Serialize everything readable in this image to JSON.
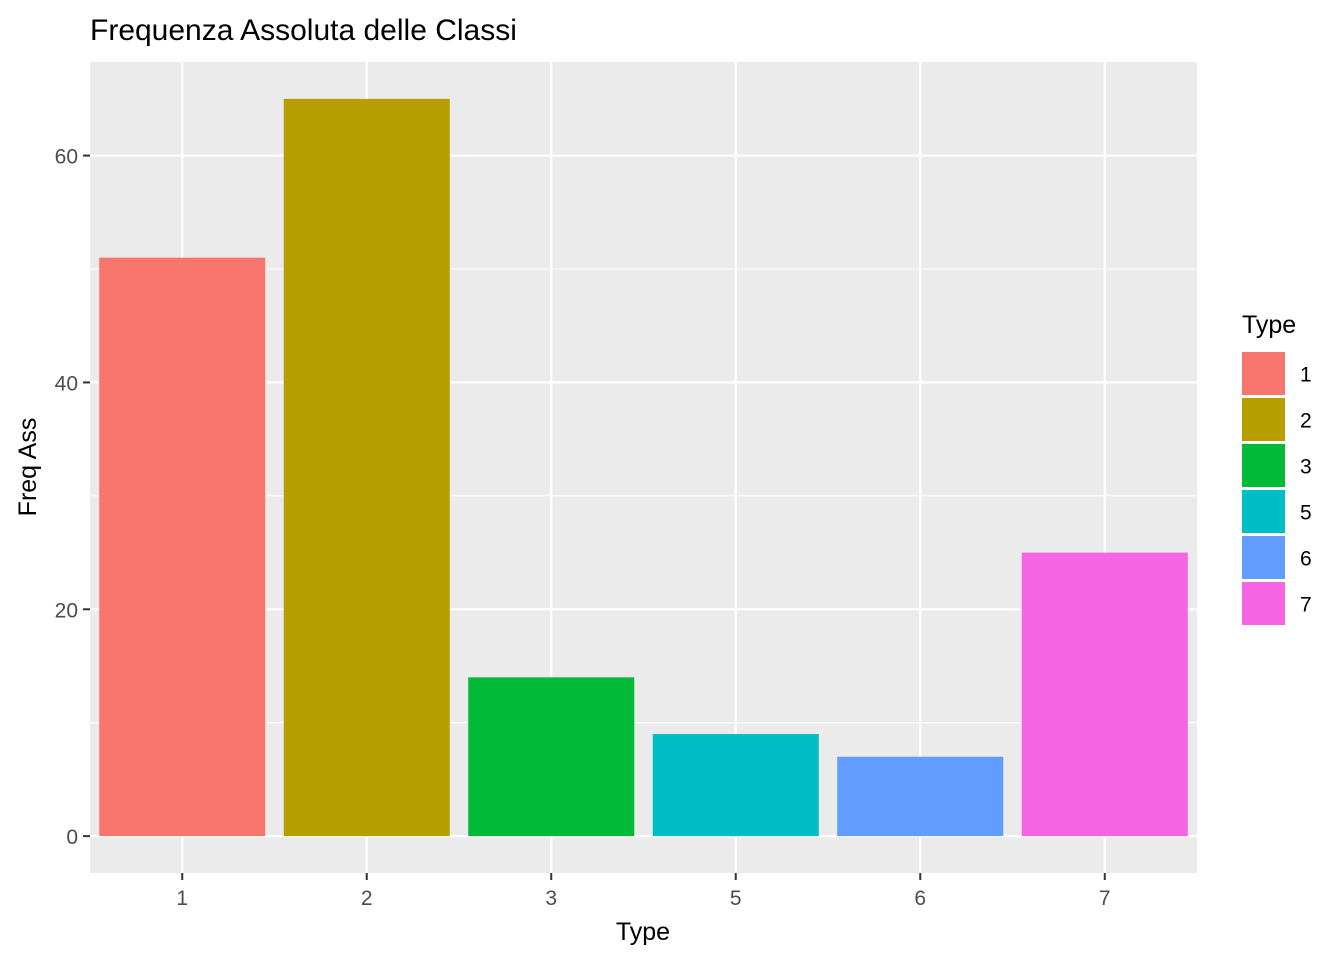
{
  "chart_data": {
    "type": "bar",
    "title": "Frequenza Assoluta delle Classi",
    "xlabel": "Type",
    "ylabel": "Freq Ass",
    "categories": [
      "1",
      "2",
      "3",
      "5",
      "6",
      "7"
    ],
    "values": [
      51,
      65,
      14,
      9,
      7,
      25
    ],
    "colors": [
      "#F8766D",
      "#B79F00",
      "#00BA38",
      "#00BFC4",
      "#619CFF",
      "#F564E3"
    ],
    "ylim": [
      -3.25,
      68.25
    ],
    "yticks": [
      0,
      20,
      40,
      60
    ],
    "grid": true,
    "panel_background": "#EBEBEB",
    "legend": {
      "title": "Type",
      "position": "right",
      "items": [
        "1",
        "2",
        "3",
        "5",
        "6",
        "7"
      ]
    }
  }
}
